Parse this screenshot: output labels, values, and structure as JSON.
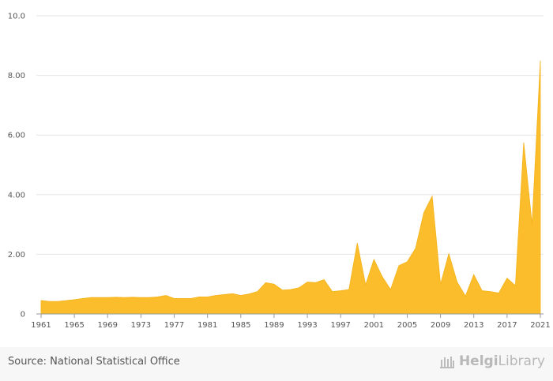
{
  "chart_data": {
    "type": "area",
    "title": "",
    "xlabel": "",
    "ylabel": "",
    "ylim": [
      0,
      10
    ],
    "xlim": [
      1961,
      2021
    ],
    "y_ticks": [
      "0",
      "2.00",
      "4.00",
      "6.00",
      "8.00",
      "10.0"
    ],
    "y_tick_values": [
      0,
      2,
      4,
      6,
      8,
      10
    ],
    "x_ticks": [
      "1961",
      "1965",
      "1969",
      "1973",
      "1977",
      "1981",
      "1985",
      "1989",
      "1993",
      "1997",
      "2001",
      "2005",
      "2009",
      "2013",
      "2017",
      "2021"
    ],
    "fill_color": "#fbbd2b",
    "grid": true,
    "series": [
      {
        "name": "value",
        "x": [
          1961,
          1962,
          1963,
          1964,
          1965,
          1966,
          1967,
          1968,
          1969,
          1970,
          1971,
          1972,
          1973,
          1974,
          1975,
          1976,
          1977,
          1978,
          1979,
          1980,
          1981,
          1982,
          1983,
          1984,
          1985,
          1986,
          1987,
          1988,
          1989,
          1990,
          1991,
          1992,
          1993,
          1994,
          1995,
          1996,
          1997,
          1998,
          1999,
          2000,
          2001,
          2002,
          2003,
          2004,
          2005,
          2006,
          2007,
          2008,
          2009,
          2010,
          2011,
          2012,
          2013,
          2014,
          2015,
          2016,
          2017,
          2018,
          2019,
          2020,
          2021
        ],
        "values": [
          0.45,
          0.42,
          0.42,
          0.45,
          0.48,
          0.52,
          0.55,
          0.55,
          0.55,
          0.56,
          0.55,
          0.56,
          0.55,
          0.55,
          0.57,
          0.62,
          0.52,
          0.52,
          0.52,
          0.57,
          0.57,
          0.62,
          0.65,
          0.68,
          0.62,
          0.67,
          0.75,
          1.05,
          1.0,
          0.8,
          0.82,
          0.88,
          1.07,
          1.05,
          1.15,
          0.75,
          0.78,
          0.82,
          2.38,
          0.98,
          1.83,
          1.25,
          0.82,
          1.62,
          1.75,
          2.2,
          3.4,
          3.95,
          1.0,
          2.02,
          1.07,
          0.6,
          1.32,
          0.78,
          0.75,
          0.7,
          1.2,
          0.95,
          5.75,
          3.0,
          8.5
        ]
      }
    ]
  },
  "footer": {
    "source": "Source: National Statistical Office",
    "brand_bold": "Helgi",
    "brand_light": "Library"
  }
}
